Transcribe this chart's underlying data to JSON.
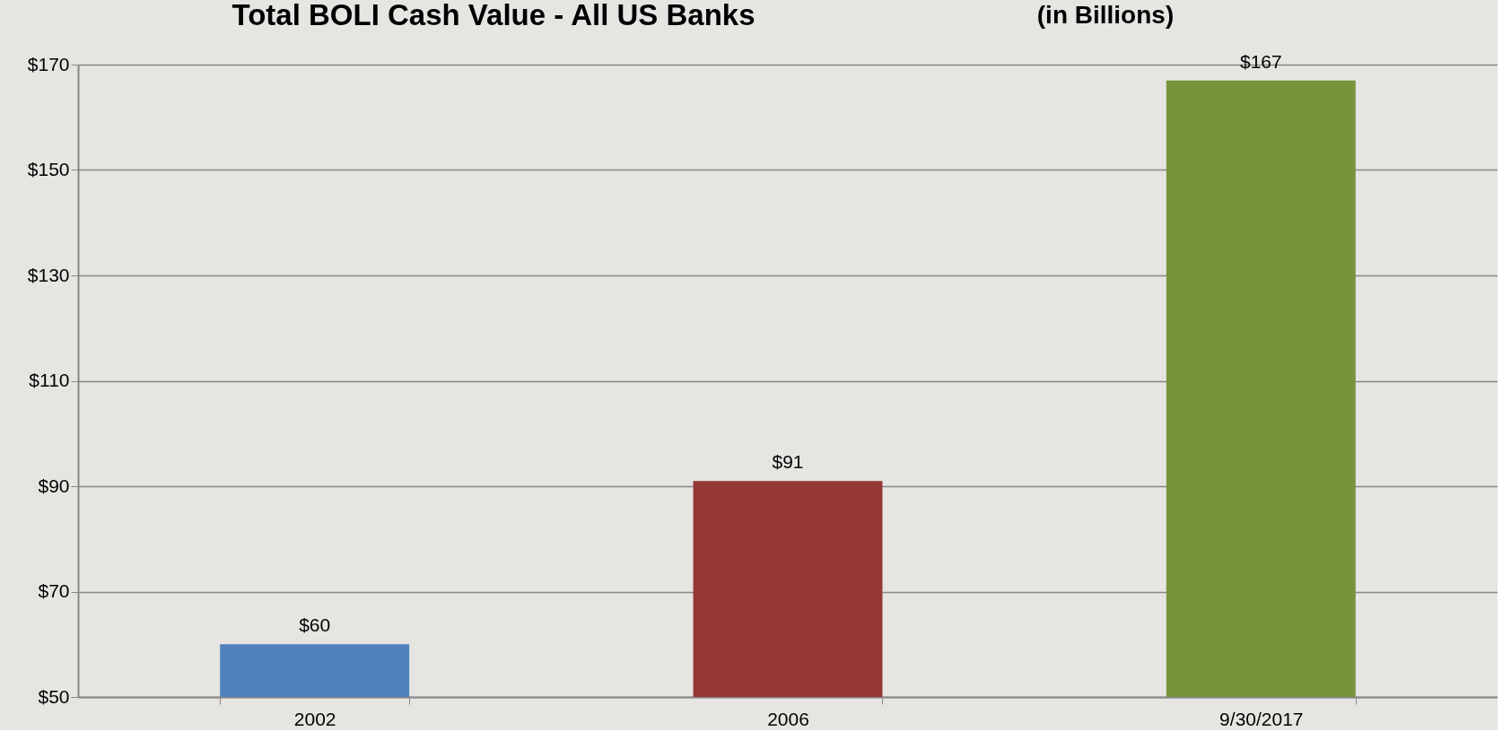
{
  "chart_data": {
    "type": "bar",
    "title": "Total BOLI Cash Value - All US Banks",
    "subtitle": "(in Billions)",
    "categories": [
      "2002",
      "2006",
      "9/30/2017"
    ],
    "values": [
      60,
      91,
      167
    ],
    "colors": [
      "#4f81bd",
      "#953735",
      "#77933c"
    ],
    "value_labels": [
      "$60",
      "$91",
      "$167"
    ],
    "ylim": [
      50,
      170
    ],
    "yticks": [
      {
        "value": 50,
        "label": "$50"
      },
      {
        "value": 70,
        "label": "$70"
      },
      {
        "value": 90,
        "label": "$90"
      },
      {
        "value": 110,
        "label": "$110"
      },
      {
        "value": 130,
        "label": "$130"
      },
      {
        "value": 150,
        "label": "$150"
      },
      {
        "value": 170,
        "label": "$170"
      }
    ],
    "grid": "y"
  }
}
